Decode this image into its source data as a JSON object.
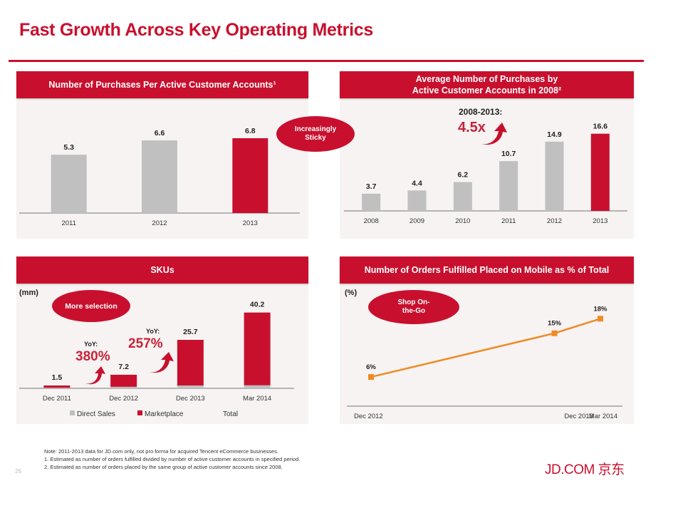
{
  "slide": {
    "title": "Fast Growth Across Key Operating Metrics",
    "page_number": "26",
    "logo": "JD.COM 京东",
    "brand_color": "#c8102e"
  },
  "panels": {
    "purchases_per_account": {
      "header": "Number of Purchases Per Active Customer Accounts¹",
      "callout": "Increasingly Sticky"
    },
    "avg_purchases_2008_cohort": {
      "header_line1": "Average Number of Purchases by",
      "header_line2": "Active Customer Accounts in 2008²",
      "growth_period": "2008-2013:",
      "growth_multiple": "4.5x"
    },
    "skus": {
      "header": "SKUs",
      "unit": "(mm)",
      "callout": "More selection",
      "yoy1_label": "YoY:",
      "yoy1_value": "380%",
      "yoy2_label": "YoY:",
      "yoy2_value": "257%"
    },
    "mobile_orders": {
      "header": "Number of Orders Fulfilled Placed on Mobile as % of Total",
      "unit": "(%)",
      "callout_line1": "Shop On-",
      "callout_line2": "the-Go"
    }
  },
  "footnotes": {
    "note": "Note: 2011-2013 data for JD.com only, not pro forma for acquired Tencent eCommerce businesses.",
    "fn1": "1. Estimated as number of orders fulfilled divided by number of active customer accounts in specified period.",
    "fn2": "2. Estimated as number of orders placed by the same group of active customer accounts since 2008."
  },
  "chart_data": [
    {
      "type": "bar",
      "title": "Number of Purchases Per Active Customer Accounts¹",
      "categories": [
        "2011",
        "2012",
        "2013"
      ],
      "values": [
        5.3,
        6.6,
        6.8
      ],
      "data_labels": [
        "5.3",
        "6.6",
        "6.8"
      ],
      "highlight": "2013",
      "colors": {
        "default": "#c0c0c0",
        "highlight": "#c8102e"
      },
      "xlabel": "",
      "ylabel": "",
      "ylim": [
        0,
        9
      ],
      "grid": false,
      "legend": "none"
    },
    {
      "type": "bar",
      "title": "Average Number of Purchases by Active Customer Accounts in 2008²",
      "categories": [
        "2008",
        "2009",
        "2010",
        "2011",
        "2012",
        "2013"
      ],
      "values": [
        3.7,
        4.4,
        6.2,
        10.7,
        14.9,
        16.6
      ],
      "data_labels": [
        "3.7",
        "4.4",
        "6.2",
        "10.7",
        "14.9",
        "16.6"
      ],
      "highlight": "2013",
      "annotations": [
        "2008-2013:",
        "4.5x"
      ],
      "colors": {
        "default": "#c0c0c0",
        "highlight": "#c8102e"
      },
      "xlabel": "",
      "ylabel": "",
      "ylim": [
        0,
        19
      ],
      "grid": false,
      "legend": "none"
    },
    {
      "type": "bar",
      "stacked": true,
      "title": "SKUs",
      "ylabel": "(mm)",
      "categories": [
        "Dec 2011",
        "Dec 2012",
        "Dec 2013",
        "Mar 2014"
      ],
      "series": [
        {
          "name": "Direct Sales",
          "values": [
            0.3,
            0.8,
            1.5,
            1.6
          ],
          "color": "#c0c0c0"
        },
        {
          "name": "Marketplace",
          "values": [
            1.2,
            6.4,
            24.2,
            38.6
          ],
          "color": "#c8102e"
        }
      ],
      "totals": [
        1.5,
        7.2,
        25.7,
        40.2
      ],
      "total_labels": [
        "1.5",
        "7.2",
        "25.7",
        "40.2"
      ],
      "legend_entries": [
        "Direct Sales",
        "Marketplace",
        "Total"
      ],
      "annotations": [
        "YoY: 380%",
        "YoY: 257%"
      ],
      "ylim": [
        0,
        48
      ],
      "grid": false,
      "legend": "bottom"
    },
    {
      "type": "line",
      "title": "Number of Orders Fulfilled Placed on Mobile as % of Total",
      "ylabel": "(%)",
      "x": [
        "Dec 2012",
        "Dec 2013",
        "Mar 2014"
      ],
      "x_position": [
        0,
        12,
        15
      ],
      "series": [
        {
          "name": "Mobile % of orders",
          "values": [
            6,
            15,
            18
          ],
          "labels": [
            "6%",
            "15%",
            "18%"
          ],
          "color": "#f08a24"
        }
      ],
      "ylim": [
        0,
        22
      ],
      "grid": false,
      "legend": "none"
    }
  ]
}
